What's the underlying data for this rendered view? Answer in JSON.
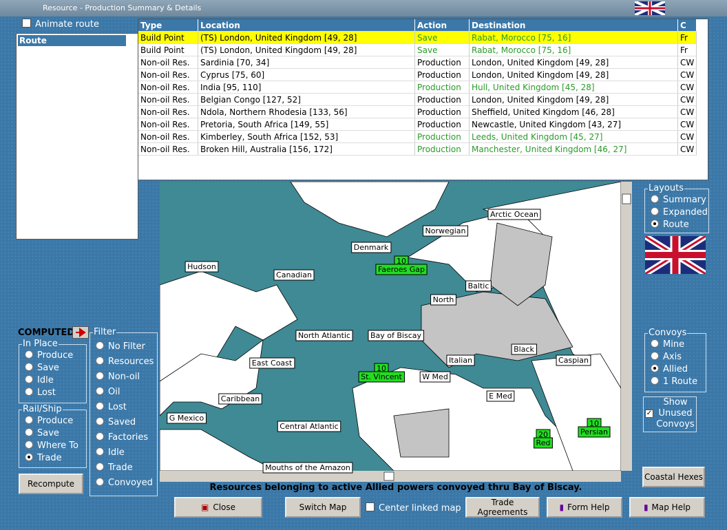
{
  "window": {
    "title": "Resource - Production Summary & Details"
  },
  "animate_route": "Animate route",
  "route_panel": {
    "header": "Route"
  },
  "table": {
    "columns": [
      "Type",
      "Location",
      "Action",
      "Destination",
      "C"
    ],
    "rows": [
      {
        "cells": [
          "Build Point",
          "(TS) London, United Kingdom [49, 28]",
          "Save",
          "Rabat, Morocco [75, 16]",
          "Fr"
        ],
        "color": "#2a9a2a",
        "highlight": "#ffff00"
      },
      {
        "cells": [
          "Build Point",
          "(TS) London, United Kingdom [49, 28]",
          "Save",
          "Rabat, Morocco [75, 16]",
          "Fr"
        ],
        "color": "#2a9a2a"
      },
      {
        "cells": [
          "Non-oil Res.",
          "Sardinia [70, 34]",
          "Production",
          "London, United Kingdom [49, 28]",
          "CW"
        ],
        "color": "#000000"
      },
      {
        "cells": [
          "Non-oil Res.",
          "Cyprus [75, 60]",
          "Production",
          "London, United Kingdom [49, 28]",
          "CW"
        ],
        "color": "#000000"
      },
      {
        "cells": [
          "Non-oil Res.",
          "India [95, 110]",
          "Production",
          "Hull, United Kingdom [45, 28]",
          "CW"
        ],
        "color": "#2a9a2a"
      },
      {
        "cells": [
          "Non-oil Res.",
          "Belgian Congo [127, 52]",
          "Production",
          "London, United Kingdom [49, 28]",
          "CW"
        ],
        "color": "#000000"
      },
      {
        "cells": [
          "Non-oil Res.",
          "Ndola, Northern Rhodesia [133, 56]",
          "Production",
          "Sheffield, United Kingdom [46, 28]",
          "CW"
        ],
        "color": "#000000"
      },
      {
        "cells": [
          "Non-oil Res.",
          "Pretoria, South Africa [149, 55]",
          "Production",
          "Newcastle, United Kingdom [43, 27]",
          "CW"
        ],
        "color": "#000000"
      },
      {
        "cells": [
          "Non-oil Res.",
          "Kimberley, South Africa [152, 53]",
          "Production",
          "Leeds, United Kingdom [45, 27]",
          "CW"
        ],
        "color": "#2a9a2a"
      },
      {
        "cells": [
          "Non-oil Res.",
          "Broken Hill, Australia [156, 172]",
          "Production",
          "Manchester, United Kingdom [46, 27]",
          "CW"
        ],
        "color": "#2a9a2a"
      }
    ]
  },
  "map": {
    "sea_zones": [
      "Arctic Ocean",
      "Norwegian",
      "Denmark",
      "Hudson",
      "Canadian",
      "Baltic",
      "North",
      "North Atlantic",
      "Bay of Biscay",
      "Black",
      "Italian",
      "Caspian",
      "East Coast",
      "W Med",
      "E Med",
      "Caribbean",
      "G Mexico",
      "Central Atlantic",
      "Mouths of the Amazon"
    ],
    "convoys": [
      {
        "count": 10,
        "name": "Faeroes Gap"
      },
      {
        "count": 10,
        "name": "St. Vincent"
      },
      {
        "count": 20,
        "name": "Red"
      },
      {
        "count": 10,
        "name": "Persian"
      }
    ]
  },
  "left_panel": {
    "computed": "COMPUTED",
    "in_place": {
      "title": "In Place",
      "options": [
        "Produce",
        "Save",
        "Idle",
        "Lost"
      ]
    },
    "rail_ship": {
      "title": "Rail/Ship",
      "options": [
        "Produce",
        "Save",
        "Where To",
        "Trade"
      ],
      "selected": 3
    },
    "recompute": "Recompute",
    "filter": {
      "title": "Filter",
      "options": [
        "No Filter",
        "Resources",
        "Non-oil",
        "Oil",
        "Lost",
        "Saved",
        "Factories",
        "Idle",
        "Trade",
        "Convoyed"
      ]
    }
  },
  "right_panel": {
    "layouts": {
      "title": "Layouts",
      "options": [
        "Summary",
        "Expanded",
        "Route"
      ],
      "selected": 2
    },
    "convoys": {
      "title": "Convoys",
      "options": [
        "Mine",
        "Axis",
        "Allied",
        "1 Route"
      ],
      "selected": 2
    },
    "show_unused": "Show Unused Convoys",
    "coastal_hexes": "Coastal Hexes"
  },
  "status": "Resources belonging to active Allied powers convoyed thru Bay of Biscay.",
  "buttons": {
    "close": "Close",
    "switch_map": "Switch Map",
    "center_linked_map": "Center linked map",
    "trade_agreements": "Trade Agreements",
    "form_help": "Form Help",
    "map_help": "Map Help"
  }
}
